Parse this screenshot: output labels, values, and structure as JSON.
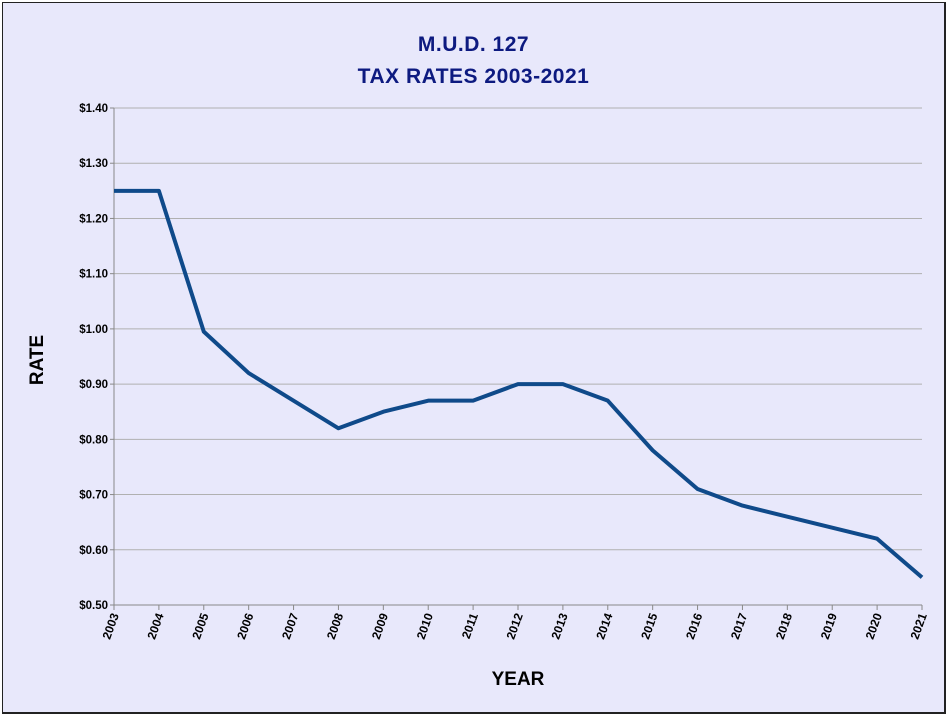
{
  "chart_data": {
    "type": "line",
    "title": "M.U.D. 127",
    "subtitle": "TAX RATES 2003-2021",
    "xlabel": "YEAR",
    "ylabel": "RATE",
    "ylim": [
      0.5,
      1.4
    ],
    "ytick_labels": [
      "$0.50",
      "$0.60",
      "$0.70",
      "$0.80",
      "$0.90",
      "$1.00",
      "$1.10",
      "$1.20",
      "$1.30",
      "$1.40"
    ],
    "grid": true,
    "categories": [
      "2003",
      "2004",
      "2005",
      "2006",
      "2007",
      "2008",
      "2009",
      "2010",
      "2011",
      "2012",
      "2013",
      "2014",
      "2015",
      "2016",
      "2017",
      "2018",
      "2019",
      "2020",
      "2021"
    ],
    "series": [
      {
        "values": [
          1.25,
          1.25,
          0.995,
          0.92,
          0.87,
          0.82,
          0.85,
          0.87,
          0.87,
          0.9,
          0.9,
          0.87,
          0.78,
          0.71,
          0.68,
          0.66,
          0.64,
          0.62,
          0.55
        ],
        "color": "#0f4a8a"
      }
    ]
  }
}
